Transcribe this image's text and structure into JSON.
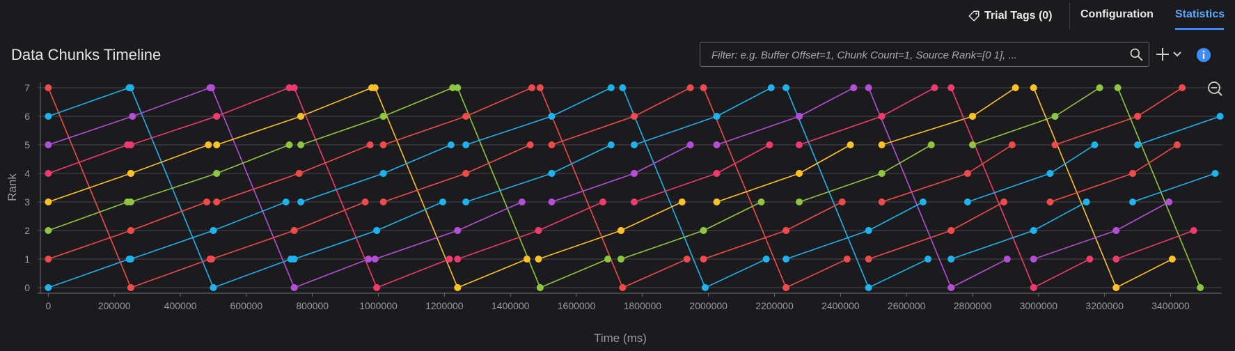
{
  "header": {
    "trial_tags_label": "Trial Tags (0)",
    "tabs": [
      {
        "label": "Configuration",
        "active": false
      },
      {
        "label": "Statistics",
        "active": true
      }
    ]
  },
  "panel": {
    "title": "Data Chunks Timeline",
    "filter_placeholder": "Filter: e.g. Buffer Offset=1, Chunk Count=1, Source Rank=[0 1], ..."
  },
  "icons": {
    "trial_tags": "tag-icon",
    "search": "search-icon",
    "add": "plus-icon",
    "dropdown": "chevron-down-icon",
    "info": "info-icon",
    "zoom_out": "zoom-out-icon"
  },
  "colors": {
    "background": "#1b1b1d",
    "accent": "#3d8bff",
    "series": [
      "#ef4b4b",
      "#1fb2ec",
      "#b34fd6",
      "#ee3b6e",
      "#fec12a",
      "#8fc641"
    ]
  },
  "chart_data": {
    "type": "line",
    "xlabel": "Time (ms)",
    "ylabel": "Rank",
    "xlim": [
      0,
      3550000
    ],
    "ylim": [
      0,
      7
    ],
    "xticks": [
      0,
      200000,
      400000,
      600000,
      800000,
      1000000,
      1200000,
      1400000,
      1600000,
      1800000,
      2000000,
      2200000,
      2400000,
      2600000,
      2800000,
      3000000,
      3200000,
      3400000
    ],
    "yticks": [
      0,
      1,
      2,
      3,
      4,
      5,
      6,
      7
    ],
    "grid": true,
    "legend": "none",
    "segments": [
      {
        "color": "#ef4b4b",
        "from": [
          0,
          7
        ],
        "to": [
          250000,
          0
        ]
      },
      {
        "color": "#1fb2ec",
        "from": [
          0,
          6
        ],
        "to": [
          245000,
          7
        ]
      },
      {
        "color": "#b34fd6",
        "from": [
          0,
          5
        ],
        "to": [
          255000,
          6
        ]
      },
      {
        "color": "#ee3b6e",
        "from": [
          0,
          4
        ],
        "to": [
          240000,
          5
        ]
      },
      {
        "color": "#fec12a",
        "from": [
          0,
          3
        ],
        "to": [
          250000,
          4
        ]
      },
      {
        "color": "#8fc641",
        "from": [
          0,
          2
        ],
        "to": [
          240000,
          3
        ]
      },
      {
        "color": "#ef4b4b",
        "from": [
          0,
          1
        ],
        "to": [
          250000,
          2
        ]
      },
      {
        "color": "#1fb2ec",
        "from": [
          0,
          0
        ],
        "to": [
          245000,
          1
        ]
      },
      {
        "color": "#1fb2ec",
        "from": [
          250000,
          7
        ],
        "to": [
          500000,
          0
        ]
      },
      {
        "color": "#b34fd6",
        "from": [
          255000,
          6
        ],
        "to": [
          490000,
          7
        ]
      },
      {
        "color": "#ee3b6e",
        "from": [
          250000,
          5
        ],
        "to": [
          510000,
          6
        ]
      },
      {
        "color": "#fec12a",
        "from": [
          250000,
          4
        ],
        "to": [
          485000,
          5
        ]
      },
      {
        "color": "#8fc641",
        "from": [
          250000,
          3
        ],
        "to": [
          510000,
          4
        ]
      },
      {
        "color": "#ef4b4b",
        "from": [
          250000,
          2
        ],
        "to": [
          480000,
          3
        ]
      },
      {
        "color": "#1fb2ec",
        "from": [
          250000,
          1
        ],
        "to": [
          500000,
          2
        ]
      },
      {
        "color": "#ef4b4b",
        "from": [
          250000,
          0
        ],
        "to": [
          490000,
          1
        ]
      },
      {
        "color": "#b34fd6",
        "from": [
          495000,
          7
        ],
        "to": [
          745000,
          0
        ]
      },
      {
        "color": "#ee3b6e",
        "from": [
          510000,
          6
        ],
        "to": [
          730000,
          7
        ]
      },
      {
        "color": "#fec12a",
        "from": [
          510000,
          5
        ],
        "to": [
          765000,
          6
        ]
      },
      {
        "color": "#8fc641",
        "from": [
          510000,
          4
        ],
        "to": [
          730000,
          5
        ]
      },
      {
        "color": "#ef4b4b",
        "from": [
          510000,
          3
        ],
        "to": [
          760000,
          4
        ]
      },
      {
        "color": "#1fb2ec",
        "from": [
          500000,
          2
        ],
        "to": [
          720000,
          3
        ]
      },
      {
        "color": "#ef4b4b",
        "from": [
          495000,
          1
        ],
        "to": [
          745000,
          2
        ]
      },
      {
        "color": "#1fb2ec",
        "from": [
          500000,
          0
        ],
        "to": [
          735000,
          1
        ]
      },
      {
        "color": "#ee3b6e",
        "from": [
          745000,
          7
        ],
        "to": [
          995000,
          0
        ]
      },
      {
        "color": "#fec12a",
        "from": [
          765000,
          6
        ],
        "to": [
          980000,
          7
        ]
      },
      {
        "color": "#8fc641",
        "from": [
          765000,
          5
        ],
        "to": [
          1015000,
          6
        ]
      },
      {
        "color": "#ef4b4b",
        "from": [
          760000,
          4
        ],
        "to": [
          975000,
          5
        ]
      },
      {
        "color": "#1fb2ec",
        "from": [
          765000,
          3
        ],
        "to": [
          1015000,
          4
        ]
      },
      {
        "color": "#ef4b4b",
        "from": [
          745000,
          2
        ],
        "to": [
          960000,
          3
        ]
      },
      {
        "color": "#1fb2ec",
        "from": [
          745000,
          1
        ],
        "to": [
          995000,
          2
        ]
      },
      {
        "color": "#b34fd6",
        "from": [
          745000,
          0
        ],
        "to": [
          970000,
          1
        ]
      },
      {
        "color": "#fec12a",
        "from": [
          990000,
          7
        ],
        "to": [
          1240000,
          0
        ]
      },
      {
        "color": "#8fc641",
        "from": [
          1015000,
          6
        ],
        "to": [
          1225000,
          7
        ]
      },
      {
        "color": "#ef4b4b",
        "from": [
          1015000,
          5
        ],
        "to": [
          1265000,
          6
        ]
      },
      {
        "color": "#1fb2ec",
        "from": [
          1015000,
          4
        ],
        "to": [
          1220000,
          5
        ]
      },
      {
        "color": "#ef4b4b",
        "from": [
          1015000,
          3
        ],
        "to": [
          1265000,
          4
        ]
      },
      {
        "color": "#1fb2ec",
        "from": [
          995000,
          2
        ],
        "to": [
          1195000,
          3
        ]
      },
      {
        "color": "#b34fd6",
        "from": [
          990000,
          1
        ],
        "to": [
          1240000,
          2
        ]
      },
      {
        "color": "#ee3b6e",
        "from": [
          995000,
          0
        ],
        "to": [
          1215000,
          1
        ]
      },
      {
        "color": "#8fc641",
        "from": [
          1240000,
          7
        ],
        "to": [
          1490000,
          0
        ]
      },
      {
        "color": "#ef4b4b",
        "from": [
          1265000,
          6
        ],
        "to": [
          1465000,
          7
        ]
      },
      {
        "color": "#1fb2ec",
        "from": [
          1265000,
          5
        ],
        "to": [
          1525000,
          6
        ]
      },
      {
        "color": "#ef4b4b",
        "from": [
          1265000,
          4
        ],
        "to": [
          1460000,
          5
        ]
      },
      {
        "color": "#1fb2ec",
        "from": [
          1265000,
          3
        ],
        "to": [
          1525000,
          4
        ]
      },
      {
        "color": "#b34fd6",
        "from": [
          1240000,
          2
        ],
        "to": [
          1435000,
          3
        ]
      },
      {
        "color": "#ee3b6e",
        "from": [
          1240000,
          1
        ],
        "to": [
          1485000,
          2
        ]
      },
      {
        "color": "#fec12a",
        "from": [
          1240000,
          0
        ],
        "to": [
          1450000,
          1
        ]
      },
      {
        "color": "#ef4b4b",
        "from": [
          1490000,
          7
        ],
        "to": [
          1740000,
          0
        ]
      },
      {
        "color": "#1fb2ec",
        "from": [
          1525000,
          6
        ],
        "to": [
          1705000,
          7
        ]
      },
      {
        "color": "#ef4b4b",
        "from": [
          1525000,
          5
        ],
        "to": [
          1775000,
          6
        ]
      },
      {
        "color": "#1fb2ec",
        "from": [
          1525000,
          4
        ],
        "to": [
          1705000,
          5
        ]
      },
      {
        "color": "#b34fd6",
        "from": [
          1525000,
          3
        ],
        "to": [
          1775000,
          4
        ]
      },
      {
        "color": "#ee3b6e",
        "from": [
          1485000,
          2
        ],
        "to": [
          1680000,
          3
        ]
      },
      {
        "color": "#fec12a",
        "from": [
          1485000,
          1
        ],
        "to": [
          1735000,
          2
        ]
      },
      {
        "color": "#8fc641",
        "from": [
          1490000,
          0
        ],
        "to": [
          1695000,
          1
        ]
      },
      {
        "color": "#1fb2ec",
        "from": [
          1740000,
          7
        ],
        "to": [
          1990000,
          0
        ]
      },
      {
        "color": "#ef4b4b",
        "from": [
          1775000,
          6
        ],
        "to": [
          1945000,
          7
        ]
      },
      {
        "color": "#1fb2ec",
        "from": [
          1775000,
          5
        ],
        "to": [
          2025000,
          6
        ]
      },
      {
        "color": "#b34fd6",
        "from": [
          1775000,
          4
        ],
        "to": [
          1945000,
          5
        ]
      },
      {
        "color": "#ee3b6e",
        "from": [
          1775000,
          3
        ],
        "to": [
          2025000,
          4
        ]
      },
      {
        "color": "#fec12a",
        "from": [
          1735000,
          2
        ],
        "to": [
          1920000,
          3
        ]
      },
      {
        "color": "#8fc641",
        "from": [
          1735000,
          1
        ],
        "to": [
          1985000,
          2
        ]
      },
      {
        "color": "#ef4b4b",
        "from": [
          1740000,
          0
        ],
        "to": [
          1935000,
          1
        ]
      },
      {
        "color": "#ef4b4b",
        "from": [
          1985000,
          7
        ],
        "to": [
          2235000,
          0
        ]
      },
      {
        "color": "#1fb2ec",
        "from": [
          2025000,
          6
        ],
        "to": [
          2190000,
          7
        ]
      },
      {
        "color": "#b34fd6",
        "from": [
          2025000,
          5
        ],
        "to": [
          2275000,
          6
        ]
      },
      {
        "color": "#ee3b6e",
        "from": [
          2025000,
          4
        ],
        "to": [
          2185000,
          5
        ]
      },
      {
        "color": "#fec12a",
        "from": [
          2025000,
          3
        ],
        "to": [
          2275000,
          4
        ]
      },
      {
        "color": "#8fc641",
        "from": [
          1985000,
          2
        ],
        "to": [
          2160000,
          3
        ]
      },
      {
        "color": "#ef4b4b",
        "from": [
          1985000,
          1
        ],
        "to": [
          2235000,
          2
        ]
      },
      {
        "color": "#1fb2ec",
        "from": [
          1990000,
          0
        ],
        "to": [
          2175000,
          1
        ]
      },
      {
        "color": "#1fb2ec",
        "from": [
          2235000,
          7
        ],
        "to": [
          2485000,
          0
        ]
      },
      {
        "color": "#b34fd6",
        "from": [
          2275000,
          6
        ],
        "to": [
          2440000,
          7
        ]
      },
      {
        "color": "#ee3b6e",
        "from": [
          2275000,
          5
        ],
        "to": [
          2525000,
          6
        ]
      },
      {
        "color": "#fec12a",
        "from": [
          2275000,
          4
        ],
        "to": [
          2430000,
          5
        ]
      },
      {
        "color": "#8fc641",
        "from": [
          2275000,
          3
        ],
        "to": [
          2525000,
          4
        ]
      },
      {
        "color": "#ef4b4b",
        "from": [
          2235000,
          2
        ],
        "to": [
          2405000,
          3
        ]
      },
      {
        "color": "#1fb2ec",
        "from": [
          2235000,
          1
        ],
        "to": [
          2485000,
          2
        ]
      },
      {
        "color": "#ef4b4b",
        "from": [
          2235000,
          0
        ],
        "to": [
          2420000,
          1
        ]
      },
      {
        "color": "#b34fd6",
        "from": [
          2485000,
          7
        ],
        "to": [
          2735000,
          0
        ]
      },
      {
        "color": "#ee3b6e",
        "from": [
          2525000,
          6
        ],
        "to": [
          2685000,
          7
        ]
      },
      {
        "color": "#fec12a",
        "from": [
          2525000,
          5
        ],
        "to": [
          2800000,
          6
        ]
      },
      {
        "color": "#8fc641",
        "from": [
          2525000,
          4
        ],
        "to": [
          2675000,
          5
        ]
      },
      {
        "color": "#ef4b4b",
        "from": [
          2525000,
          3
        ],
        "to": [
          2785000,
          4
        ]
      },
      {
        "color": "#1fb2ec",
        "from": [
          2485000,
          2
        ],
        "to": [
          2650000,
          3
        ]
      },
      {
        "color": "#ef4b4b",
        "from": [
          2485000,
          1
        ],
        "to": [
          2735000,
          2
        ]
      },
      {
        "color": "#1fb2ec",
        "from": [
          2485000,
          0
        ],
        "to": [
          2665000,
          1
        ]
      },
      {
        "color": "#ee3b6e",
        "from": [
          2735000,
          7
        ],
        "to": [
          2985000,
          0
        ]
      },
      {
        "color": "#fec12a",
        "from": [
          2800000,
          6
        ],
        "to": [
          2930000,
          7
        ]
      },
      {
        "color": "#8fc641",
        "from": [
          2800000,
          5
        ],
        "to": [
          3050000,
          6
        ]
      },
      {
        "color": "#ef4b4b",
        "from": [
          2785000,
          4
        ],
        "to": [
          2920000,
          5
        ]
      },
      {
        "color": "#1fb2ec",
        "from": [
          2785000,
          3
        ],
        "to": [
          3035000,
          4
        ]
      },
      {
        "color": "#ef4b4b",
        "from": [
          2735000,
          2
        ],
        "to": [
          2895000,
          3
        ]
      },
      {
        "color": "#1fb2ec",
        "from": [
          2735000,
          1
        ],
        "to": [
          2985000,
          2
        ]
      },
      {
        "color": "#b34fd6",
        "from": [
          2735000,
          0
        ],
        "to": [
          2905000,
          1
        ]
      },
      {
        "color": "#fec12a",
        "from": [
          2985000,
          7
        ],
        "to": [
          3235000,
          0
        ]
      },
      {
        "color": "#8fc641",
        "from": [
          3050000,
          6
        ],
        "to": [
          3185000,
          7
        ]
      },
      {
        "color": "#ef4b4b",
        "from": [
          3050000,
          5
        ],
        "to": [
          3300000,
          6
        ]
      },
      {
        "color": "#1fb2ec",
        "from": [
          3035000,
          4
        ],
        "to": [
          3170000,
          5
        ]
      },
      {
        "color": "#ef4b4b",
        "from": [
          3035000,
          3
        ],
        "to": [
          3285000,
          4
        ]
      },
      {
        "color": "#1fb2ec",
        "from": [
          2985000,
          2
        ],
        "to": [
          3145000,
          3
        ]
      },
      {
        "color": "#b34fd6",
        "from": [
          2985000,
          1
        ],
        "to": [
          3235000,
          2
        ]
      },
      {
        "color": "#ee3b6e",
        "from": [
          2985000,
          0
        ],
        "to": [
          3155000,
          1
        ]
      },
      {
        "color": "#8fc641",
        "from": [
          3240000,
          7
        ],
        "to": [
          3490000,
          0
        ]
      },
      {
        "color": "#ef4b4b",
        "from": [
          3300000,
          6
        ],
        "to": [
          3435000,
          7
        ]
      },
      {
        "color": "#1fb2ec",
        "from": [
          3300000,
          5
        ],
        "to": [
          3550000,
          6
        ]
      },
      {
        "color": "#ef4b4b",
        "from": [
          3285000,
          4
        ],
        "to": [
          3420000,
          5
        ]
      },
      {
        "color": "#1fb2ec",
        "from": [
          3285000,
          3
        ],
        "to": [
          3535000,
          4
        ]
      },
      {
        "color": "#b34fd6",
        "from": [
          3235000,
          2
        ],
        "to": [
          3395000,
          3
        ]
      },
      {
        "color": "#ee3b6e",
        "from": [
          3235000,
          1
        ],
        "to": [
          3470000,
          2
        ]
      },
      {
        "color": "#fec12a",
        "from": [
          3235000,
          0
        ],
        "to": [
          3405000,
          1
        ]
      }
    ]
  }
}
